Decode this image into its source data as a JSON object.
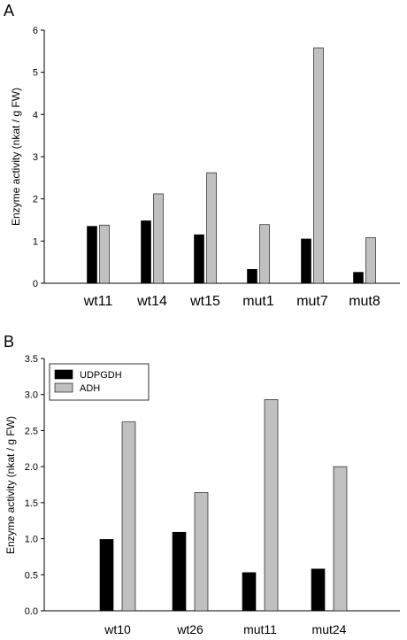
{
  "chart_data": [
    {
      "panel_label": "A",
      "type": "bar",
      "categories": [
        "wt11",
        "wt14",
        "wt15",
        "mut1",
        "mut7",
        "mut8"
      ],
      "series": [
        {
          "values": [
            1.35,
            1.48,
            1.15,
            0.33,
            1.05,
            0.26
          ],
          "color": "#000000"
        },
        {
          "values": [
            1.38,
            2.12,
            2.62,
            1.39,
            5.58,
            1.08
          ],
          "color": "#c0c0c0"
        }
      ],
      "ylabel": "Enzyme activity (nkat / g FW)",
      "ylim": [
        0,
        6
      ],
      "yticks": [
        "0",
        "1",
        "2",
        "3",
        "4",
        "5",
        "6"
      ],
      "grid": false
    },
    {
      "panel_label": "B",
      "type": "bar",
      "categories": [
        "wt10",
        "wt26",
        "mut11",
        "mut24"
      ],
      "series": [
        {
          "name": "UDPGDH",
          "values": [
            0.99,
            1.09,
            0.53,
            0.58
          ],
          "color": "#000000"
        },
        {
          "name": "ADH",
          "values": [
            2.62,
            1.64,
            2.93,
            2.0
          ],
          "color": "#c0c0c0"
        }
      ],
      "ylabel": "Enzyme activity (nkat / g FW)",
      "ylim": [
        0,
        3.5
      ],
      "yticks": [
        "0.0",
        "0.5",
        "1.0",
        "1.5",
        "2.0",
        "2.5",
        "3.0",
        "3.5"
      ],
      "legend_position": "top-left",
      "grid": false
    }
  ]
}
